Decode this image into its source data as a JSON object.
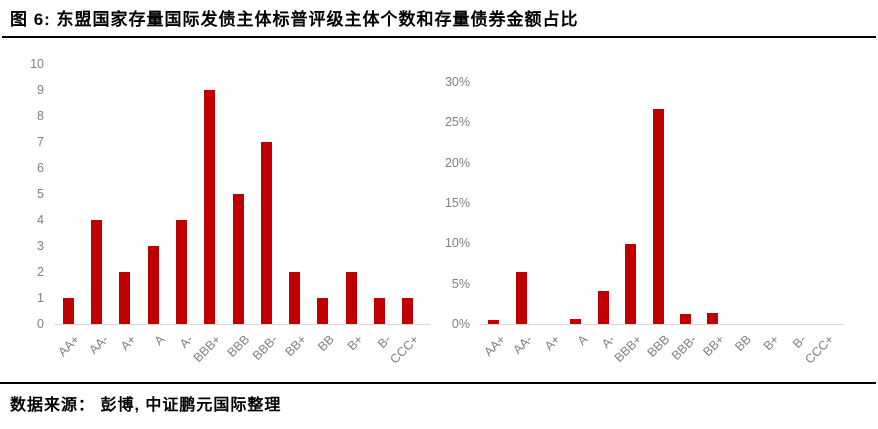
{
  "title": "图 6: 东盟国家存量国际发债主体标普评级主体个数和存量债券金额占比",
  "source": "数据来源： 彭博, 中证鹏元国际整理",
  "colors": {
    "bar": "#c00000",
    "axis_line": "#d9d9d9",
    "tick_label": "#7f7f7f",
    "text": "#000000",
    "divider": "#000000",
    "background": "#ffffff"
  },
  "chart_data": [
    {
      "type": "bar",
      "name": "sp-rating-issuer-count",
      "title": "",
      "xlabel": "",
      "ylabel": "",
      "categories": [
        "AA+",
        "AA-",
        "A+",
        "A",
        "A-",
        "BBB+",
        "BBB",
        "BBB-",
        "BB+",
        "BB",
        "B+",
        "B-",
        "CCC+"
      ],
      "values": [
        1,
        4,
        2,
        3,
        4,
        9,
        5,
        7,
        2,
        1,
        2,
        1,
        1
      ],
      "ylim": [
        0,
        10
      ],
      "yticks": [
        0,
        1,
        2,
        3,
        4,
        5,
        6,
        7,
        8,
        9,
        10
      ],
      "ytick_labels": [
        "0",
        "1",
        "2",
        "3",
        "4",
        "5",
        "6",
        "7",
        "8",
        "9",
        "10"
      ],
      "grid": false,
      "legend": "none",
      "bar_color": "#c00000"
    },
    {
      "type": "bar",
      "name": "sp-rating-bond-amount-share",
      "title": "",
      "xlabel": "",
      "ylabel": "",
      "categories": [
        "AA+",
        "AA-",
        "A+",
        "A",
        "A-",
        "BBB+",
        "BBB",
        "BBB-",
        "BB+",
        "BB",
        "B+",
        "B-",
        "CCC+"
      ],
      "values": [
        0.5,
        6.5,
        0,
        0.6,
        4.1,
        9.9,
        26.6,
        1.2,
        1.4,
        0,
        0,
        0,
        0
      ],
      "ylim": [
        0,
        30
      ],
      "yticks": [
        0,
        5,
        10,
        15,
        20,
        25,
        30
      ],
      "ytick_labels": [
        "0%",
        "5%",
        "10%",
        "15%",
        "20%",
        "25%",
        "30%"
      ],
      "grid": false,
      "legend": "none",
      "bar_color": "#c00000"
    }
  ]
}
